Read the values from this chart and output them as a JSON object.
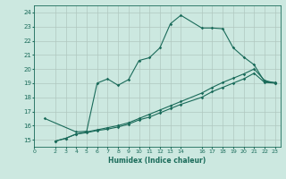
{
  "xlabel": "Humidex (Indice chaleur)",
  "background_color": "#cce8e0",
  "grid_color": "#b0c8c0",
  "line_color": "#1a6b5a",
  "xlim": [
    0,
    23.5
  ],
  "ylim": [
    14.5,
    24.5
  ],
  "xticks": [
    0,
    2,
    3,
    4,
    5,
    6,
    7,
    8,
    9,
    10,
    11,
    12,
    13,
    14,
    16,
    17,
    18,
    19,
    20,
    21,
    22,
    23
  ],
  "yticks": [
    15,
    16,
    17,
    18,
    19,
    20,
    21,
    22,
    23,
    24
  ],
  "line1_x": [
    2,
    3,
    4,
    5,
    6,
    7,
    8,
    9,
    10,
    11,
    12,
    13,
    14,
    16,
    17,
    18,
    19,
    20,
    21,
    22,
    23
  ],
  "line1_y": [
    14.9,
    15.1,
    15.4,
    15.5,
    15.65,
    15.75,
    15.9,
    16.1,
    16.4,
    16.6,
    16.9,
    17.2,
    17.5,
    18.0,
    18.4,
    18.7,
    19.0,
    19.3,
    19.7,
    19.05,
    19.0
  ],
  "line2_x": [
    2,
    3,
    4,
    5,
    6,
    7,
    8,
    9,
    10,
    11,
    12,
    13,
    14,
    16,
    17,
    18,
    19,
    20,
    21,
    22,
    23
  ],
  "line2_y": [
    14.9,
    15.1,
    15.4,
    15.55,
    15.7,
    15.85,
    16.0,
    16.2,
    16.5,
    16.8,
    17.1,
    17.4,
    17.7,
    18.3,
    18.7,
    19.05,
    19.35,
    19.65,
    20.0,
    19.2,
    19.0
  ],
  "line3_x": [
    1,
    4,
    5,
    6,
    7,
    8,
    9,
    10,
    11,
    12,
    13,
    14,
    16,
    17,
    18,
    19,
    20,
    21,
    22,
    23
  ],
  "line3_y": [
    16.5,
    15.55,
    15.6,
    19.0,
    19.3,
    18.85,
    19.25,
    20.6,
    20.8,
    21.5,
    23.2,
    23.8,
    22.9,
    22.9,
    22.85,
    21.5,
    20.85,
    20.3,
    19.1,
    19.05
  ]
}
